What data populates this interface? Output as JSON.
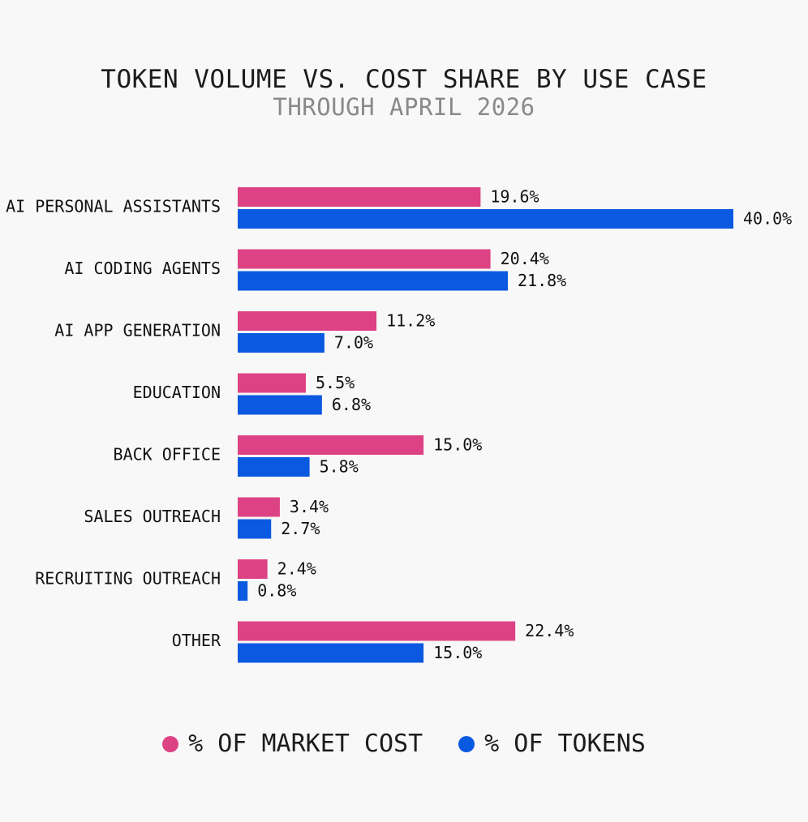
{
  "chart_data": {
    "type": "bar",
    "orientation": "horizontal",
    "title": "TOKEN VOLUME VS. COST SHARE BY USE CASE",
    "subtitle": "THROUGH APRIL 2026",
    "categories": [
      "AI PERSONAL ASSISTANTS",
      "AI CODING AGENTS",
      "AI APP GENERATION",
      "EDUCATION",
      "BACK OFFICE",
      "SALES OUTREACH",
      "RECRUITING OUTREACH",
      "OTHER"
    ],
    "series": [
      {
        "name": "% OF MARKET COST",
        "color": "#dd4384",
        "values": [
          19.6,
          20.4,
          11.2,
          5.5,
          15.0,
          3.4,
          2.4,
          22.4
        ],
        "labels": [
          "19.6%",
          "20.4%",
          "11.2%",
          "5.5%",
          "15.0%",
          "3.4%",
          "2.4%",
          "22.4%"
        ]
      },
      {
        "name": "% OF TOKENS",
        "color": "#0b59e0",
        "values": [
          40.0,
          21.8,
          7.0,
          6.8,
          5.8,
          2.7,
          0.8,
          15.0
        ],
        "labels": [
          "40.0%",
          "21.8%",
          "7.0%",
          "6.8%",
          "5.8%",
          "2.7%",
          "0.8%",
          "15.0%"
        ]
      }
    ],
    "xlim": [
      0,
      40
    ],
    "grid": false,
    "legend_position": "bottom"
  }
}
